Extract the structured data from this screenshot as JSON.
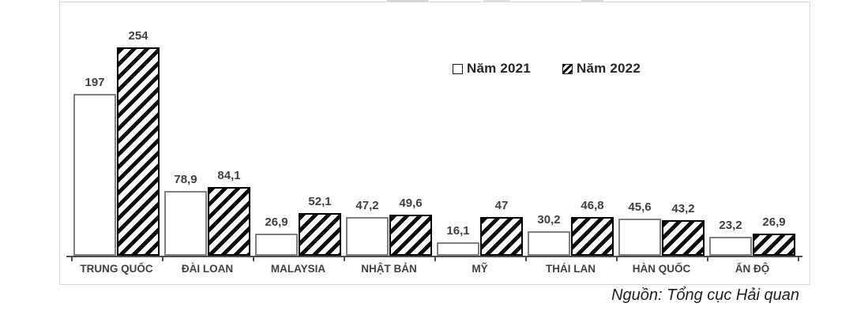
{
  "chart_data": {
    "type": "bar",
    "title": "",
    "xlabel": "",
    "ylabel": "",
    "ylim": [
      0,
      270
    ],
    "grid": false,
    "legend_position": "top-right",
    "categories": [
      "TRUNG QUỐC",
      "ĐÀI LOAN",
      "MALAYSIA",
      "NHẬT BẢN",
      "MỸ",
      "THÁI LAN",
      "HÀN QUỐC",
      "ẤN ĐỘ"
    ],
    "series": [
      {
        "name": "Năm 2021",
        "style": "white",
        "values": [
          197,
          78.9,
          26.9,
          47.2,
          16.1,
          30.2,
          45.6,
          23.2
        ],
        "labels": [
          "197",
          "78,9",
          "26,9",
          "47,2",
          "16,1",
          "30,2",
          "45,6",
          "23,2"
        ]
      },
      {
        "name": "Năm 2022",
        "style": "hatched-diagonal",
        "values": [
          254,
          84.1,
          52.1,
          49.6,
          47,
          46.8,
          43.2,
          26.9
        ],
        "labels": [
          "254",
          "84,1",
          "52,1",
          "49,6",
          "47",
          "46,8",
          "43,2",
          "26,9"
        ]
      }
    ]
  },
  "source": {
    "text": "Nguồn: Tổng cục Hải quan"
  },
  "colors": {
    "bar_fill": "#ffffff",
    "bar_border_2021": "#7f7f7f",
    "bar_border_2022": "#000000",
    "hatch": "#0a0a0a",
    "axis": "#4d4d4d",
    "label_text": "#404040",
    "frame_border": "#d9d9d9"
  }
}
